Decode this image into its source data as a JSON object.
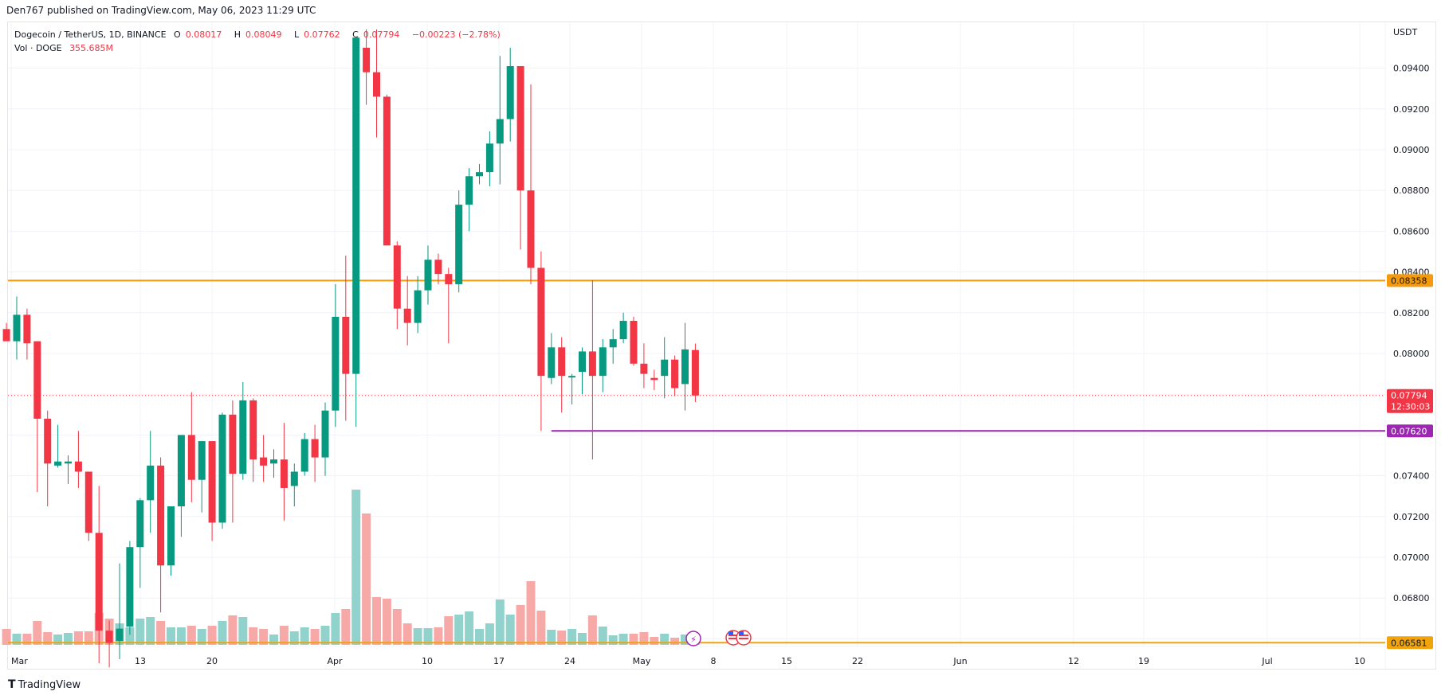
{
  "header": {
    "published": "Den767 published on TradingView.com, May 06, 2023 11:29 UTC"
  },
  "legend": {
    "symbol": "Dogecoin / TetherUS, 1D, BINANCE",
    "o_label": "O",
    "o": "0.08017",
    "h_label": "H",
    "h": "0.08049",
    "l_label": "L",
    "l": "0.07762",
    "c_label": "C",
    "c": "0.07794",
    "change": "−0.00223 (−2.78%)",
    "vol_label": "Vol · DOGE",
    "vol": "355.685M"
  },
  "price_axis": {
    "currency": "USDT",
    "ticks": [
      "0.09400",
      "0.09200",
      "0.09000",
      "0.08800",
      "0.08600",
      "0.08400",
      "0.08200",
      "0.08000",
      "0.07400",
      "0.07200",
      "0.07000",
      "0.06800"
    ]
  },
  "price_labels": {
    "resistance": "0.08358",
    "current_price": "0.07794",
    "countdown": "12:30:03",
    "support": "0.07620",
    "lower": "0.06581"
  },
  "colors": {
    "up": "#089981",
    "down": "#f23645",
    "up_vol": "#92d2cc",
    "down_vol": "#f7a9a7",
    "resistance": "#f59a0a",
    "support": "#9c27b0",
    "lower_line": "#f0a30a"
  },
  "footer": {
    "brand": "TradingView"
  },
  "chart_data": {
    "type": "candlestick",
    "title": "Dogecoin / TetherUS, 1D, BINANCE",
    "xlabel": "",
    "ylabel": "USDT",
    "ylim": [
      0.065,
      0.0955
    ],
    "x_ticks": [
      "Mar",
      "13",
      "20",
      "Apr",
      "10",
      "17",
      "24",
      "May",
      "8",
      "15",
      "22",
      "Jun",
      "12",
      "19",
      "Jul",
      "10"
    ],
    "horizontal_lines": [
      {
        "price": 0.08358,
        "color": "#f59a0a",
        "label": "0.08358"
      },
      {
        "price": 0.0762,
        "color": "#9c27b0",
        "label": "0.07620",
        "start": "Apr 20"
      },
      {
        "price": 0.06581,
        "color": "#f0a30a",
        "label": "0.06581"
      }
    ],
    "candles": [
      {
        "date": "Feb 28",
        "o": 0.0812,
        "h": 0.0815,
        "l": 0.0807,
        "c": 0.0806,
        "v": 20
      },
      {
        "date": "Mar 1",
        "o": 0.0806,
        "h": 0.0828,
        "l": 0.0797,
        "c": 0.0819,
        "v": 14
      },
      {
        "date": "Mar 2",
        "o": 0.0819,
        "h": 0.0822,
        "l": 0.0797,
        "c": 0.0805,
        "v": 14
      },
      {
        "date": "Mar 3",
        "o": 0.0806,
        "h": 0.0806,
        "l": 0.0732,
        "c": 0.0768,
        "v": 30
      },
      {
        "date": "Mar 4",
        "o": 0.0768,
        "h": 0.0772,
        "l": 0.0725,
        "c": 0.0746,
        "v": 16
      },
      {
        "date": "Mar 5",
        "o": 0.0745,
        "h": 0.0765,
        "l": 0.0744,
        "c": 0.0747,
        "v": 13
      },
      {
        "date": "Mar 6",
        "o": 0.0746,
        "h": 0.075,
        "l": 0.0736,
        "c": 0.0747,
        "v": 15
      },
      {
        "date": "Mar 7",
        "o": 0.0747,
        "h": 0.0762,
        "l": 0.0734,
        "c": 0.0742,
        "v": 17
      },
      {
        "date": "Mar 8",
        "o": 0.0742,
        "h": 0.0742,
        "l": 0.0708,
        "c": 0.0712,
        "v": 17
      },
      {
        "date": "Mar 9",
        "o": 0.0712,
        "h": 0.0735,
        "l": 0.0648,
        "c": 0.0664,
        "v": 40
      },
      {
        "date": "Mar 10",
        "o": 0.0664,
        "h": 0.0669,
        "l": 0.0646,
        "c": 0.0658,
        "v": 33
      },
      {
        "date": "Mar 11",
        "o": 0.0659,
        "h": 0.0697,
        "l": 0.065,
        "c": 0.0665,
        "v": 27
      },
      {
        "date": "Mar 12",
        "o": 0.0666,
        "h": 0.0708,
        "l": 0.0662,
        "c": 0.0705,
        "v": 22
      },
      {
        "date": "Mar 13",
        "o": 0.0705,
        "h": 0.0729,
        "l": 0.0685,
        "c": 0.0728,
        "v": 33
      },
      {
        "date": "Mar 14",
        "o": 0.0728,
        "h": 0.0762,
        "l": 0.0712,
        "c": 0.0745,
        "v": 35
      },
      {
        "date": "Mar 15",
        "o": 0.0745,
        "h": 0.0749,
        "l": 0.0673,
        "c": 0.0696,
        "v": 30
      },
      {
        "date": "Mar 16",
        "o": 0.0696,
        "h": 0.0725,
        "l": 0.0691,
        "c": 0.0725,
        "v": 22
      },
      {
        "date": "Mar 17",
        "o": 0.0725,
        "h": 0.076,
        "l": 0.071,
        "c": 0.076,
        "v": 22
      },
      {
        "date": "Mar 18",
        "o": 0.076,
        "h": 0.0781,
        "l": 0.0727,
        "c": 0.0738,
        "v": 24
      },
      {
        "date": "Mar 19",
        "o": 0.0738,
        "h": 0.0755,
        "l": 0.0722,
        "c": 0.0757,
        "v": 20
      },
      {
        "date": "Mar 20",
        "o": 0.0757,
        "h": 0.0754,
        "l": 0.0708,
        "c": 0.0717,
        "v": 24
      },
      {
        "date": "Mar 21",
        "o": 0.0717,
        "h": 0.0771,
        "l": 0.0714,
        "c": 0.077,
        "v": 30
      },
      {
        "date": "Mar 22",
        "o": 0.077,
        "h": 0.0777,
        "l": 0.0717,
        "c": 0.0741,
        "v": 37
      },
      {
        "date": "Mar 23",
        "o": 0.0741,
        "h": 0.0786,
        "l": 0.0738,
        "c": 0.0777,
        "v": 35
      },
      {
        "date": "Mar 24",
        "o": 0.0777,
        "h": 0.0778,
        "l": 0.0737,
        "c": 0.0748,
        "v": 22
      },
      {
        "date": "Mar 25",
        "o": 0.0749,
        "h": 0.076,
        "l": 0.0737,
        "c": 0.0745,
        "v": 20
      },
      {
        "date": "Mar 26",
        "o": 0.0746,
        "h": 0.0753,
        "l": 0.0739,
        "c": 0.0748,
        "v": 13
      },
      {
        "date": "Mar 27",
        "o": 0.0748,
        "h": 0.0766,
        "l": 0.0718,
        "c": 0.0734,
        "v": 24
      },
      {
        "date": "Mar 28",
        "o": 0.0735,
        "h": 0.0746,
        "l": 0.0725,
        "c": 0.0742,
        "v": 17
      },
      {
        "date": "Mar 29",
        "o": 0.0742,
        "h": 0.0761,
        "l": 0.074,
        "c": 0.0758,
        "v": 22
      },
      {
        "date": "Mar 30",
        "o": 0.0758,
        "h": 0.0765,
        "l": 0.0737,
        "c": 0.0749,
        "v": 20
      },
      {
        "date": "Mar 31",
        "o": 0.0749,
        "h": 0.0776,
        "l": 0.074,
        "c": 0.0772,
        "v": 24
      },
      {
        "date": "Apr 1",
        "o": 0.0772,
        "h": 0.0834,
        "l": 0.0764,
        "c": 0.0818,
        "v": 40
      },
      {
        "date": "Apr 2",
        "o": 0.0818,
        "h": 0.0848,
        "l": 0.0767,
        "c": 0.079,
        "v": 45
      },
      {
        "date": "Apr 3",
        "o": 0.079,
        "h": 0.0955,
        "l": 0.0764,
        "c": 0.0955,
        "v": 195
      },
      {
        "date": "Apr 4",
        "o": 0.095,
        "h": 0.0959,
        "l": 0.0922,
        "c": 0.0938,
        "v": 165
      },
      {
        "date": "Apr 5",
        "o": 0.0938,
        "h": 0.0959,
        "l": 0.0906,
        "c": 0.0926,
        "v": 60
      },
      {
        "date": "Apr 6",
        "o": 0.0926,
        "h": 0.0927,
        "l": 0.0878,
        "c": 0.0853,
        "v": 58
      },
      {
        "date": "Apr 7",
        "o": 0.0853,
        "h": 0.0855,
        "l": 0.0812,
        "c": 0.0822,
        "v": 45
      },
      {
        "date": "Apr 8",
        "o": 0.0822,
        "h": 0.0838,
        "l": 0.0804,
        "c": 0.0815,
        "v": 27
      },
      {
        "date": "Apr 9",
        "o": 0.0815,
        "h": 0.0838,
        "l": 0.081,
        "c": 0.0831,
        "v": 21
      },
      {
        "date": "Apr 10",
        "o": 0.0831,
        "h": 0.0853,
        "l": 0.0824,
        "c": 0.0846,
        "v": 21
      },
      {
        "date": "Apr 11",
        "o": 0.0846,
        "h": 0.0849,
        "l": 0.0834,
        "c": 0.0839,
        "v": 22
      },
      {
        "date": "Apr 12",
        "o": 0.0839,
        "h": 0.0842,
        "l": 0.0805,
        "c": 0.0834,
        "v": 36
      },
      {
        "date": "Apr 13",
        "o": 0.0834,
        "h": 0.088,
        "l": 0.083,
        "c": 0.0873,
        "v": 38
      },
      {
        "date": "Apr 14",
        "o": 0.0873,
        "h": 0.0891,
        "l": 0.086,
        "c": 0.0887,
        "v": 42
      },
      {
        "date": "Apr 15",
        "o": 0.0887,
        "h": 0.0893,
        "l": 0.0883,
        "c": 0.0889,
        "v": 20
      },
      {
        "date": "Apr 16",
        "o": 0.0889,
        "h": 0.0909,
        "l": 0.0882,
        "c": 0.0903,
        "v": 27
      },
      {
        "date": "Apr 17",
        "o": 0.0903,
        "h": 0.0946,
        "l": 0.0883,
        "c": 0.0915,
        "v": 57
      },
      {
        "date": "Apr 18",
        "o": 0.0915,
        "h": 0.095,
        "l": 0.0904,
        "c": 0.0941,
        "v": 38
      },
      {
        "date": "Apr 19",
        "o": 0.0941,
        "h": 0.0941,
        "l": 0.0851,
        "c": 0.088,
        "v": 50
      },
      {
        "date": "Apr 20",
        "o": 0.088,
        "h": 0.0932,
        "l": 0.0834,
        "c": 0.0842,
        "v": 80
      },
      {
        "date": "Apr 21",
        "o": 0.0842,
        "h": 0.085,
        "l": 0.0762,
        "c": 0.0789,
        "v": 43
      },
      {
        "date": "Apr 22",
        "o": 0.0788,
        "h": 0.081,
        "l": 0.0785,
        "c": 0.0803,
        "v": 19
      },
      {
        "date": "Apr 23",
        "o": 0.0803,
        "h": 0.0808,
        "l": 0.0771,
        "c": 0.0789,
        "v": 18
      },
      {
        "date": "Apr 24",
        "o": 0.0789,
        "h": 0.079,
        "l": 0.0775,
        "c": 0.0789,
        "v": 20
      },
      {
        "date": "Apr 25",
        "o": 0.0791,
        "h": 0.0803,
        "l": 0.078,
        "c": 0.0801,
        "v": 15
      },
      {
        "date": "Apr 26",
        "o": 0.0801,
        "h": 0.0836,
        "l": 0.0748,
        "c": 0.0789,
        "v": 37
      },
      {
        "date": "Apr 27",
        "o": 0.0789,
        "h": 0.0807,
        "l": 0.0781,
        "c": 0.0803,
        "v": 23
      },
      {
        "date": "Apr 28",
        "o": 0.0803,
        "h": 0.0812,
        "l": 0.0795,
        "c": 0.0807,
        "v": 12
      },
      {
        "date": "Apr 29",
        "o": 0.0807,
        "h": 0.082,
        "l": 0.0805,
        "c": 0.0816,
        "v": 14
      },
      {
        "date": "Apr 30",
        "o": 0.0816,
        "h": 0.0818,
        "l": 0.0794,
        "c": 0.0795,
        "v": 14
      },
      {
        "date": "May 1",
        "o": 0.0795,
        "h": 0.0805,
        "l": 0.0783,
        "c": 0.079,
        "v": 16
      },
      {
        "date": "May 2",
        "o": 0.0788,
        "h": 0.0792,
        "l": 0.0782,
        "c": 0.0787,
        "v": 10
      },
      {
        "date": "May 3",
        "o": 0.0789,
        "h": 0.0808,
        "l": 0.0778,
        "c": 0.0797,
        "v": 14
      },
      {
        "date": "May 4",
        "o": 0.0797,
        "h": 0.0799,
        "l": 0.0779,
        "c": 0.0783,
        "v": 9
      },
      {
        "date": "May 5",
        "o": 0.0785,
        "h": 0.0815,
        "l": 0.0772,
        "c": 0.0802,
        "v": 13
      },
      {
        "date": "May 6",
        "o": 0.08017,
        "h": 0.08049,
        "l": 0.07762,
        "c": 0.07794,
        "v": 12
      }
    ]
  }
}
